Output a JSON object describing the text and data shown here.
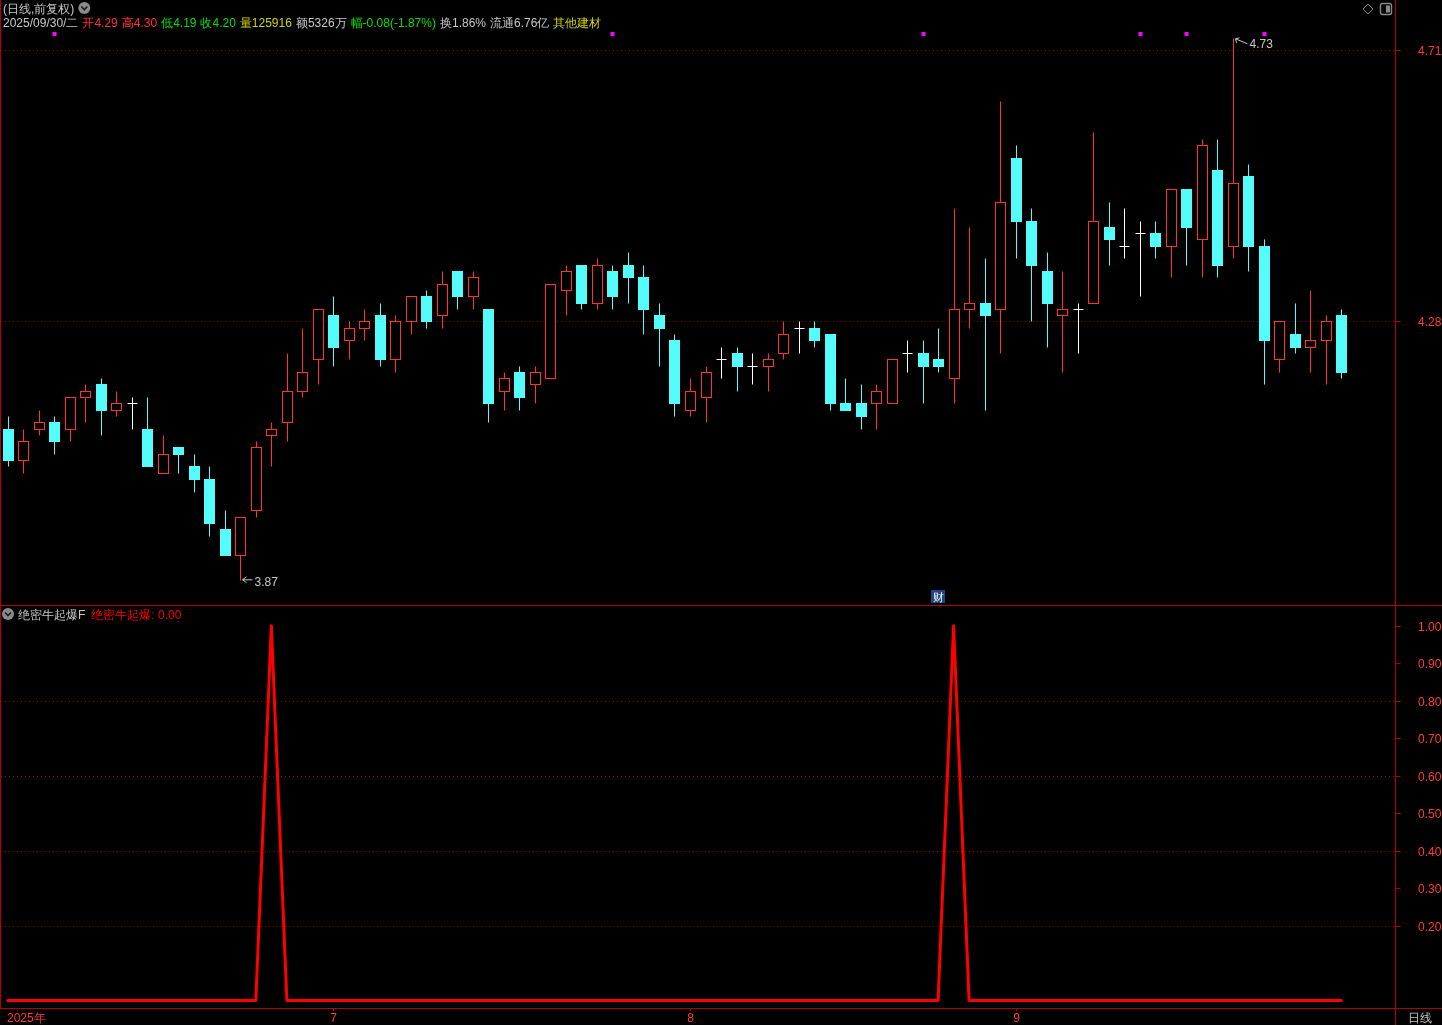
{
  "chart_data": [
    {
      "type": "candlestick",
      "title": "(日线,前复权)",
      "subtitle": "2025/09/30/二 开4.29 高4.30 低4.19 收4.20 量125916 额5326万 幅-0.08(-1.87%) 换1.86% 流通6.76亿 其他建材",
      "annotations": [
        "4.73",
        "3.87",
        "财"
      ],
      "categories": [
        null,
        null,
        null,
        null,
        null,
        null,
        null,
        null,
        null,
        null,
        null,
        null,
        null,
        null,
        null,
        null,
        null,
        null,
        null,
        null,
        null,
        null,
        null,
        null,
        null,
        null,
        null,
        null,
        null,
        null,
        null,
        null,
        null,
        null,
        null,
        null,
        null,
        null,
        null,
        null,
        null,
        null,
        null,
        null,
        null,
        null,
        null,
        null,
        null,
        null,
        null,
        null,
        null,
        null,
        null,
        null,
        null,
        null,
        null,
        null,
        null,
        null,
        null,
        null,
        null,
        null,
        null,
        null,
        null,
        null,
        null,
        null,
        null,
        null,
        null,
        null,
        null,
        null,
        null,
        null,
        null,
        null,
        null,
        null,
        null,
        null,
        null,
        null,
        null,
        null
      ],
      "ohlc": [
        [
          4.11,
          4.13,
          4.05,
          4.06
        ],
        [
          4.06,
          4.11,
          4.04,
          4.09
        ],
        [
          4.11,
          4.14,
          4.1,
          4.12
        ],
        [
          4.12,
          4.13,
          4.07,
          4.09
        ],
        [
          4.11,
          4.16,
          4.09,
          4.16
        ],
        [
          4.16,
          4.18,
          4.12,
          4.17
        ],
        [
          4.18,
          4.19,
          4.1,
          4.14
        ],
        [
          4.14,
          4.17,
          4.13,
          4.15
        ],
        [
          4.15,
          4.16,
          4.11,
          4.15
        ],
        [
          4.11,
          4.16,
          4.05,
          4.05
        ],
        [
          4.04,
          4.1,
          4.04,
          4.07
        ],
        [
          4.08,
          4.08,
          4.04,
          4.07
        ],
        [
          4.05,
          4.07,
          4.01,
          4.03
        ],
        [
          4.03,
          4.05,
          3.94,
          3.96
        ],
        [
          3.95,
          3.98,
          3.91,
          3.91
        ],
        [
          3.91,
          3.97,
          3.87,
          3.97
        ],
        [
          3.98,
          4.09,
          3.97,
          4.08
        ],
        [
          4.1,
          4.12,
          4.05,
          4.11
        ],
        [
          4.12,
          4.23,
          4.09,
          4.17
        ],
        [
          4.17,
          4.27,
          4.16,
          4.2
        ],
        [
          4.22,
          4.3,
          4.18,
          4.3
        ],
        [
          4.29,
          4.32,
          4.21,
          4.24
        ],
        [
          4.25,
          4.28,
          4.22,
          4.27
        ],
        [
          4.27,
          4.3,
          4.25,
          4.28
        ],
        [
          4.29,
          4.31,
          4.21,
          4.22
        ],
        [
          4.22,
          4.29,
          4.2,
          4.28
        ],
        [
          4.28,
          4.32,
          4.26,
          4.32
        ],
        [
          4.32,
          4.33,
          4.27,
          4.28
        ],
        [
          4.29,
          4.36,
          4.27,
          4.34
        ],
        [
          4.36,
          4.36,
          4.3,
          4.32
        ],
        [
          4.32,
          4.36,
          4.3,
          4.35
        ],
        [
          4.3,
          4.3,
          4.12,
          4.15
        ],
        [
          4.17,
          4.2,
          4.14,
          4.19
        ],
        [
          4.2,
          4.21,
          4.14,
          4.16
        ],
        [
          4.18,
          4.21,
          4.15,
          4.2
        ],
        [
          4.19,
          4.34,
          4.19,
          4.34
        ],
        [
          4.33,
          4.37,
          4.29,
          4.36
        ],
        [
          4.37,
          4.37,
          4.3,
          4.31
        ],
        [
          4.31,
          4.38,
          4.3,
          4.37
        ],
        [
          4.36,
          4.37,
          4.3,
          4.32
        ],
        [
          4.37,
          4.39,
          4.31,
          4.35
        ],
        [
          4.35,
          4.37,
          4.26,
          4.3
        ],
        [
          4.29,
          4.31,
          4.21,
          4.27
        ],
        [
          4.25,
          4.26,
          4.13,
          4.15
        ],
        [
          4.14,
          4.19,
          4.13,
          4.17
        ],
        [
          4.16,
          4.21,
          4.12,
          4.2
        ],
        [
          4.22,
          4.24,
          4.19,
          4.22
        ],
        [
          4.23,
          4.24,
          4.17,
          4.21
        ],
        [
          4.21,
          4.23,
          4.18,
          4.21
        ],
        [
          4.21,
          4.23,
          4.17,
          4.22
        ],
        [
          4.23,
          4.28,
          4.22,
          4.26
        ],
        [
          4.27,
          4.28,
          4.23,
          4.27
        ],
        [
          4.27,
          4.28,
          4.24,
          4.25
        ],
        [
          4.26,
          4.26,
          4.14,
          4.15
        ],
        [
          4.15,
          4.19,
          4.14,
          4.14
        ],
        [
          4.15,
          4.18,
          4.11,
          4.13
        ],
        [
          4.15,
          4.18,
          4.11,
          4.17
        ],
        [
          4.15,
          4.22,
          4.15,
          4.22
        ],
        [
          4.23,
          4.25,
          4.2,
          4.23
        ],
        [
          4.23,
          4.25,
          4.15,
          4.21
        ],
        [
          4.22,
          4.27,
          4.2,
          4.21
        ],
        [
          4.19,
          4.46,
          4.15,
          4.3
        ],
        [
          4.3,
          4.43,
          4.27,
          4.31
        ],
        [
          4.31,
          4.38,
          4.14,
          4.29
        ],
        [
          4.3,
          4.63,
          4.23,
          4.47
        ],
        [
          4.54,
          4.56,
          4.38,
          4.44
        ],
        [
          4.44,
          4.46,
          4.28,
          4.37
        ],
        [
          4.36,
          4.39,
          4.24,
          4.31
        ],
        [
          4.29,
          4.36,
          4.2,
          4.3
        ],
        [
          4.3,
          4.31,
          4.23,
          4.3
        ],
        [
          4.31,
          4.58,
          4.31,
          4.44
        ],
        [
          4.43,
          4.47,
          4.37,
          4.41
        ],
        [
          4.4,
          4.46,
          4.38,
          4.4
        ],
        [
          4.42,
          4.44,
          4.32,
          4.42
        ],
        [
          4.42,
          4.44,
          4.38,
          4.4
        ],
        [
          4.4,
          4.49,
          4.35,
          4.49
        ],
        [
          4.49,
          4.49,
          4.37,
          4.43
        ],
        [
          4.41,
          4.57,
          4.35,
          4.56
        ],
        [
          4.52,
          4.57,
          4.35,
          4.37
        ],
        [
          4.4,
          4.73,
          4.38,
          4.5
        ],
        [
          4.51,
          4.53,
          4.36,
          4.4
        ],
        [
          4.4,
          4.41,
          4.18,
          4.25
        ],
        [
          4.22,
          4.28,
          4.2,
          4.28
        ],
        [
          4.26,
          4.31,
          4.23,
          4.24
        ],
        [
          4.24,
          4.33,
          4.2,
          4.25
        ],
        [
          4.25,
          4.29,
          4.18,
          4.28
        ],
        [
          4.29,
          4.3,
          4.19,
          4.2
        ],
        null,
        null,
        null
      ],
      "colors": [
        "#54fcfc",
        "#ff3232",
        "#ff3232",
        "#54fcfc",
        "#ff3232",
        "#ff3232",
        "#54fcfc",
        "#ff3232",
        "#ffffff",
        "#54fcfc",
        "#ff3232",
        "#54fcfc",
        "#54fcfc",
        "#54fcfc",
        "#54fcfc",
        "#ff3232",
        "#ff3232",
        "#ff3232",
        "#ff3232",
        "#ff3232",
        "#ff3232",
        "#54fcfc",
        "#ff3232",
        "#ff3232",
        "#54fcfc",
        "#ff3232",
        "#ff3232",
        "#54fcfc",
        "#ff3232",
        "#54fcfc",
        "#ff3232",
        "#54fcfc",
        "#ff3232",
        "#54fcfc",
        "#ff3232",
        "#ff3232",
        "#ff3232",
        "#54fcfc",
        "#ff3232",
        "#54fcfc",
        "#54fcfc",
        "#54fcfc",
        "#54fcfc",
        "#54fcfc",
        "#ff3232",
        "#ff3232",
        "#ffffff",
        "#54fcfc",
        "#ffffff",
        "#ff3232",
        "#ff3232",
        "#ffffff",
        "#54fcfc",
        "#54fcfc",
        "#54fcfc",
        "#54fcfc",
        "#ff3232",
        "#ff3232",
        "#ffffff",
        "#54fcfc",
        "#54fcfc",
        "#ff3232",
        "#ff3232",
        "#54fcfc",
        "#ff3232",
        "#54fcfc",
        "#54fcfc",
        "#54fcfc",
        "#ff3232",
        "#ffffff",
        "#ff3232",
        "#54fcfc",
        "#ffffff",
        "#ffffff",
        "#54fcfc",
        "#ff3232",
        "#54fcfc",
        "#ff3232",
        "#54fcfc",
        "#ff3232",
        "#54fcfc",
        "#54fcfc",
        "#ff3232",
        "#54fcfc",
        "#ff3232",
        "#ff3232",
        "#54fcfc",
        null,
        null,
        null
      ],
      "ylim": [
        3.83,
        4.79
      ],
      "yticks": [
        4.71,
        4.28
      ],
      "grid": "y",
      "tick_labels": "y"
    },
    {
      "type": "line",
      "title": "绝密牛起爆F",
      "xlabel": "2025年",
      "annotations": [
        ": 0.00",
        "日线"
      ],
      "categories": [
        null,
        null,
        null,
        null,
        null,
        null,
        null,
        null,
        null,
        null,
        null,
        null,
        null,
        null,
        null,
        null,
        null,
        null,
        null,
        null,
        null,
        "7",
        null,
        null,
        null,
        null,
        null,
        null,
        null,
        null,
        null,
        null,
        null,
        null,
        null,
        null,
        null,
        null,
        null,
        null,
        null,
        null,
        null,
        null,
        "8",
        null,
        null,
        null,
        null,
        null,
        null,
        null,
        null,
        null,
        null,
        null,
        null,
        null,
        null,
        null,
        null,
        null,
        null,
        null,
        null,
        "9",
        null,
        null,
        null,
        null,
        null,
        null,
        null,
        null,
        null,
        null,
        null,
        null,
        null,
        null,
        null,
        null,
        null,
        null,
        null,
        null,
        null,
        null,
        null,
        null
      ],
      "series": [
        {
          "name": "绝密牛起爆",
          "color": "#ff0000",
          "values": [
            0,
            0,
            0,
            0,
            0,
            0,
            0,
            0,
            0,
            0,
            0,
            0,
            0,
            0,
            0,
            0,
            0,
            1,
            0,
            0,
            0,
            0,
            0,
            0,
            0,
            0,
            0,
            0,
            0,
            0,
            0,
            0,
            0,
            0,
            0,
            0,
            0,
            0,
            0,
            0,
            0,
            0,
            0,
            0,
            0,
            0,
            0,
            0,
            0,
            0,
            0,
            0,
            0,
            0,
            0,
            0,
            0,
            0,
            0,
            0,
            0,
            1,
            0,
            0,
            0,
            0,
            0,
            0,
            0,
            0,
            0,
            0,
            0,
            0,
            0,
            0,
            0,
            0,
            0,
            0,
            0,
            0,
            0,
            0,
            0,
            0,
            0,
            null,
            null,
            null
          ]
        }
      ],
      "ylim": [
        -0.02,
        1.05
      ],
      "yticks": [
        {
          "value": 1,
          "label": "1.00"
        },
        {
          "value": 0.9,
          "label": "0.90"
        },
        {
          "value": 0.8,
          "label": "0.80"
        },
        {
          "value": 0.7,
          "label": "0.70"
        },
        {
          "value": 0.6,
          "label": "0.60"
        },
        {
          "value": 0.5,
          "label": "0.50"
        },
        {
          "value": 0.4,
          "label": "0.40"
        },
        {
          "value": 0.3,
          "label": "0.30"
        },
        {
          "value": 0.2,
          "label": "0.20"
        }
      ],
      "ref_lines": [
        {
          "axis": "y",
          "value": 0.8,
          "line_style": "dotted",
          "color": "#a00000"
        },
        {
          "axis": "y",
          "value": 0.6,
          "line_style": "dotted",
          "color": "#a00000"
        },
        {
          "axis": "y",
          "value": 0.4,
          "line_style": "dotted",
          "color": "#a00000"
        },
        {
          "axis": "y",
          "value": 0.2,
          "line_style": "dotted",
          "color": "#a00000"
        }
      ],
      "legend": "top left"
    }
  ]
}
